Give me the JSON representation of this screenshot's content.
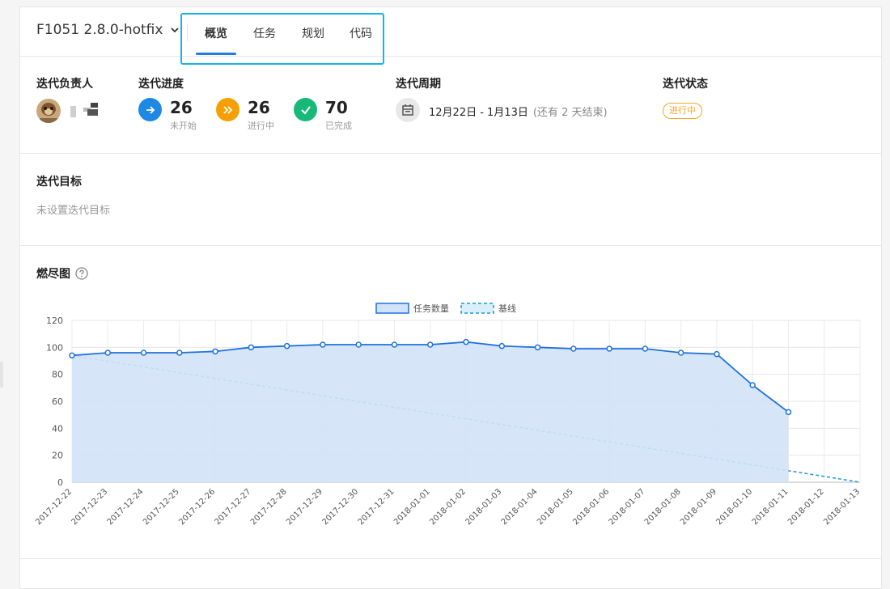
{
  "header": {
    "sprint_name": "F1051 2.8.0-hotfix",
    "tabs": [
      {
        "label": "概览",
        "active": true
      },
      {
        "label": "任务",
        "active": false
      },
      {
        "label": "规划",
        "active": false
      },
      {
        "label": "代码",
        "active": false
      }
    ]
  },
  "info": {
    "owner_label": "迭代负责人",
    "progress_label": "迭代进度",
    "period_label": "迭代周期",
    "status_label": "迭代状态",
    "progress": [
      {
        "count": "26",
        "label": "未开始",
        "color": "#1e88e5",
        "icon": "arrow-right-icon"
      },
      {
        "count": "26",
        "label": "进行中",
        "color": "#f5a000",
        "icon": "double-chevron-icon"
      },
      {
        "count": "70",
        "label": "已完成",
        "color": "#17b978",
        "icon": "check-icon"
      }
    ],
    "period": "12月22日 - 1月13日",
    "period_remain": "(还有 2 天结束)",
    "status": "进行中"
  },
  "goal": {
    "title": "迭代目标",
    "empty_text": "未设置迭代目标"
  },
  "burndown": {
    "title": "燃尽图",
    "help_icon": "question-circle-icon"
  },
  "chart_data": {
    "type": "line",
    "categories": [
      "2017-12-22",
      "2017-12-23",
      "2017-12-24",
      "2017-12-25",
      "2017-12-26",
      "2017-12-27",
      "2017-12-28",
      "2017-12-29",
      "2017-12-30",
      "2017-12-31",
      "2018-01-01",
      "2018-01-02",
      "2018-01-03",
      "2018-01-04",
      "2018-01-05",
      "2018-01-06",
      "2018-01-07",
      "2018-01-08",
      "2018-01-09",
      "2018-01-10",
      "2018-01-11",
      "2018-01-12",
      "2018-01-13"
    ],
    "series": [
      {
        "name": "任务数量",
        "style": "area",
        "color": "#1f72de",
        "fill": "#d3e2f8",
        "values": [
          94,
          96,
          96,
          96,
          97,
          100,
          101,
          102,
          102,
          102,
          102,
          104,
          101,
          100,
          99,
          99,
          99,
          96,
          95,
          72,
          52,
          null,
          null
        ]
      },
      {
        "name": "基线",
        "style": "dashed",
        "color": "#1a9ad6",
        "values": [
          94,
          89.7,
          85.5,
          81.2,
          76.9,
          72.7,
          68.4,
          64.1,
          59.8,
          55.6,
          51.3,
          47,
          42.7,
          38.5,
          34.2,
          29.9,
          25.6,
          21.4,
          17.1,
          12.8,
          8.5,
          4.3,
          0
        ]
      }
    ],
    "ylim": [
      0,
      120
    ],
    "yticks": [
      0,
      20,
      40,
      60,
      80,
      100,
      120
    ],
    "grid": true,
    "legend": "top-center"
  }
}
